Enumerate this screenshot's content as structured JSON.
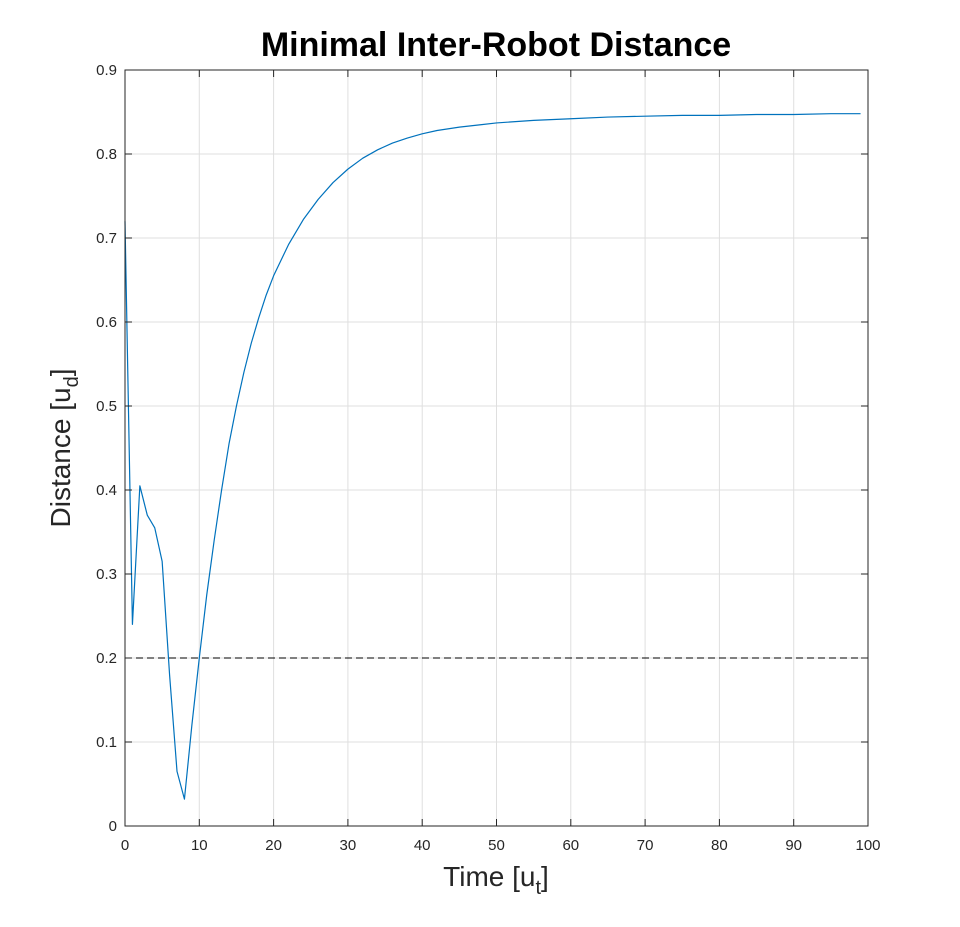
{
  "chart_data": {
    "type": "line",
    "title": "Minimal Inter-Robot Distance",
    "xlabel": {
      "main": "Time [u",
      "sub": "t",
      "end": "]"
    },
    "ylabel": {
      "main": "Distance [u",
      "sub": "d",
      "end": "]"
    },
    "xlim": [
      0,
      100
    ],
    "ylim": [
      0,
      0.9
    ],
    "xticks": [
      0,
      10,
      20,
      30,
      40,
      50,
      60,
      70,
      80,
      90,
      100
    ],
    "yticks": [
      0,
      0.1,
      0.2,
      0.3,
      0.4,
      0.5,
      0.6,
      0.7,
      0.8,
      0.9
    ],
    "grid": true,
    "threshold": {
      "y": 0.2,
      "style": "dashed",
      "color": "#000000"
    },
    "series": [
      {
        "color": "#0072BD",
        "x": [
          0,
          1,
          2,
          3,
          4,
          5,
          6,
          7,
          8,
          9,
          10,
          11,
          12,
          13,
          14,
          15,
          16,
          17,
          18,
          19,
          20,
          22,
          24,
          26,
          28,
          30,
          32,
          34,
          36,
          38,
          40,
          42,
          45,
          48,
          50,
          55,
          60,
          65,
          70,
          75,
          80,
          85,
          90,
          95,
          99
        ],
        "y": [
          0.72,
          0.24,
          0.405,
          0.37,
          0.355,
          0.315,
          0.18,
          0.065,
          0.032,
          0.12,
          0.2,
          0.275,
          0.34,
          0.4,
          0.455,
          0.5,
          0.54,
          0.575,
          0.605,
          0.632,
          0.655,
          0.692,
          0.722,
          0.746,
          0.766,
          0.782,
          0.795,
          0.805,
          0.813,
          0.819,
          0.824,
          0.828,
          0.832,
          0.835,
          0.837,
          0.84,
          0.842,
          0.844,
          0.845,
          0.846,
          0.846,
          0.847,
          0.847,
          0.848,
          0.848
        ]
      }
    ]
  }
}
